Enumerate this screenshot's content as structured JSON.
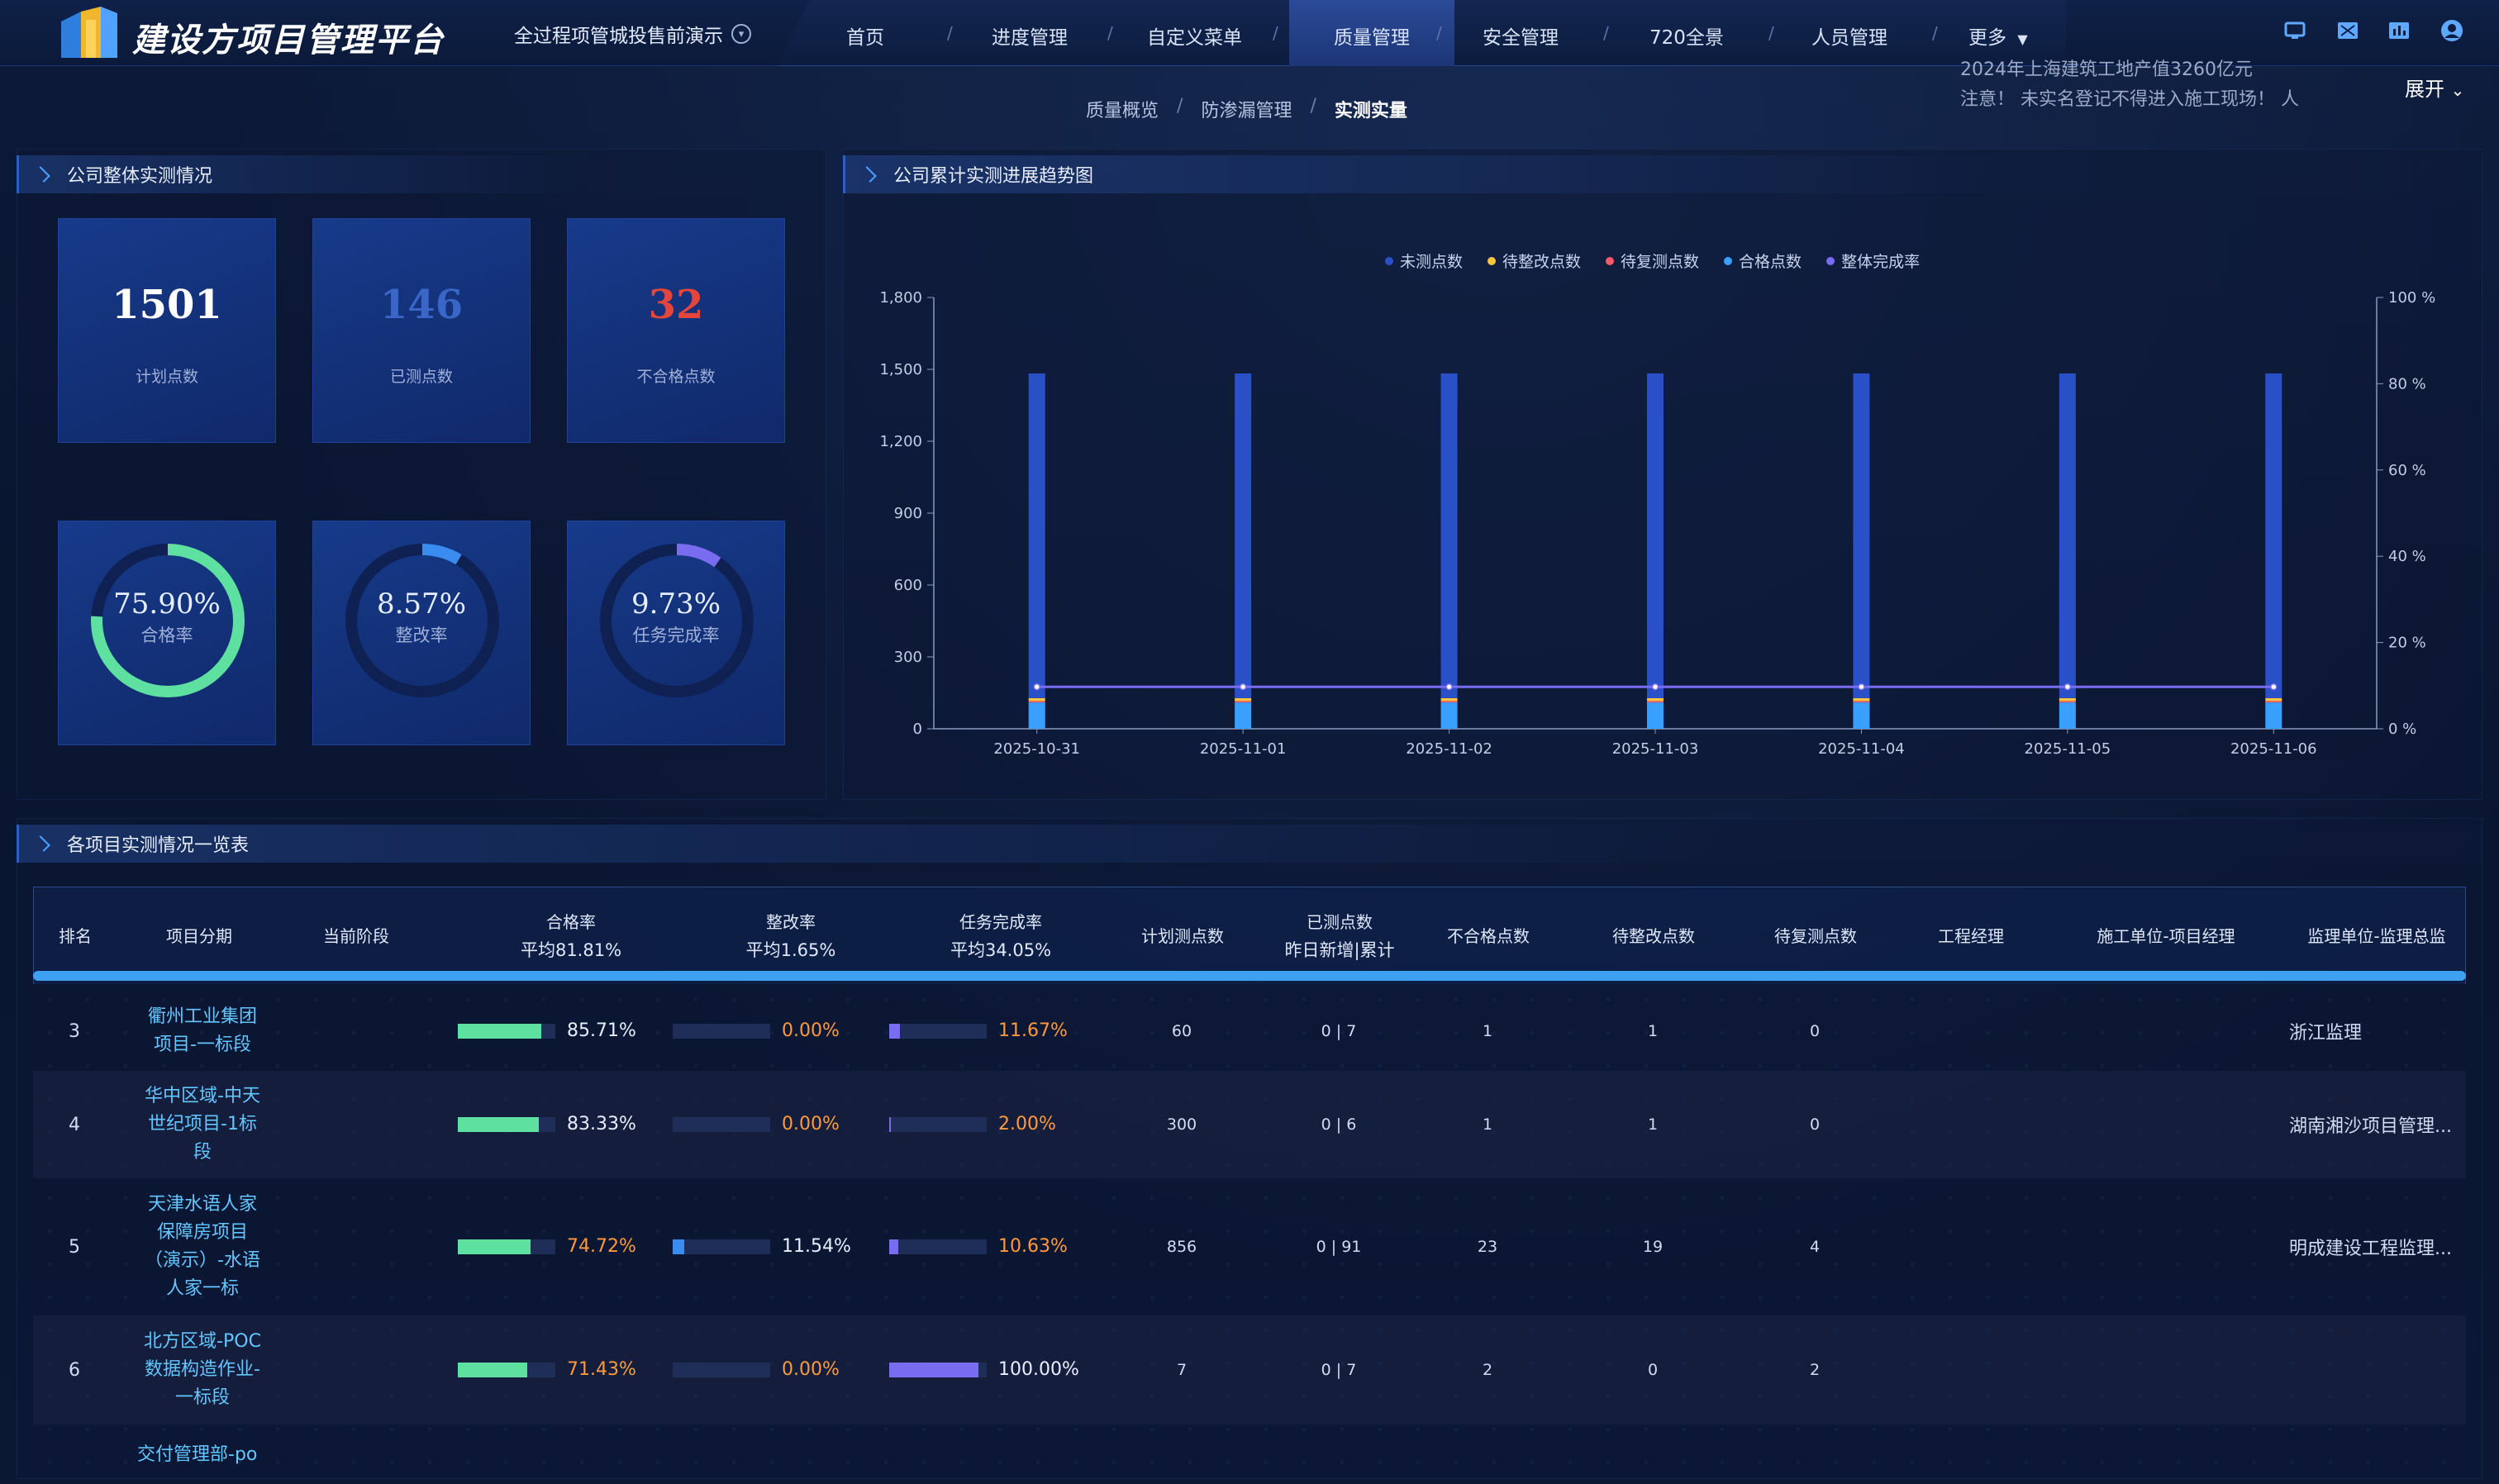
{
  "app": {
    "title": "建设方项目管理平台",
    "project": "全过程项管城投售前演示",
    "colors": {
      "accent": "#3ea0f0",
      "green": "#5ee0a0",
      "red": "#e5453a",
      "purple": "#7a6cf0",
      "orange": "#ff9a3c"
    }
  },
  "nav": {
    "items": [
      "首页",
      "进度管理",
      "自定义菜单",
      "质量管理",
      "安全管理",
      "720全景",
      "人员管理",
      "更多"
    ],
    "active": "质量管理",
    "icons": [
      "monitor-icon",
      "screen-icon",
      "chart-icon",
      "user-icon"
    ]
  },
  "subnav": {
    "items": [
      "质量概览",
      "防渗漏管理",
      "实测实量"
    ],
    "active": "实测实量"
  },
  "ticker": {
    "line1": "2024年上海建筑工地产值3260亿元",
    "line2": "注意！ 未实名登记不得进入施工现场！ 人"
  },
  "expand_label": "展开",
  "overview": {
    "title": "公司整体实测情况",
    "stats": [
      {
        "value": "1501",
        "label": "计划点数",
        "color": "#ffffff"
      },
      {
        "value": "146",
        "label": "已测点数",
        "color": "#3a66c8"
      },
      {
        "value": "32",
        "label": "不合格点数",
        "color": "#e5453a"
      }
    ],
    "rings": [
      {
        "value": "75.90%",
        "label": "合格率",
        "ratio": 0.759,
        "color": "#5ee0a0"
      },
      {
        "value": "8.57%",
        "label": "整改率",
        "ratio": 0.0857,
        "color": "#3a8cf0"
      },
      {
        "value": "9.73%",
        "label": "任务完成率",
        "ratio": 0.0973,
        "color": "#7a6cf0"
      }
    ]
  },
  "trend": {
    "title": "公司累计实测进展趋势图"
  },
  "chart_data": {
    "type": "bar",
    "categories": [
      "2025-10-31",
      "2025-11-01",
      "2025-11-02",
      "2025-11-03",
      "2025-11-04",
      "2025-11-05",
      "2025-11-06"
    ],
    "series": [
      {
        "name": "未测点数",
        "color": "#2a50c8",
        "values": [
          1355,
          1355,
          1355,
          1355,
          1355,
          1355,
          1355
        ]
      },
      {
        "name": "待整改点数",
        "color": "#f5c540",
        "values": [
          12,
          12,
          12,
          12,
          12,
          12,
          12
        ]
      },
      {
        "name": "待复测点数",
        "color": "#ff5a6a",
        "values": [
          6,
          6,
          6,
          6,
          6,
          6,
          6
        ]
      },
      {
        "name": "合格点数",
        "color": "#3aa0ff",
        "values": [
          110,
          110,
          110,
          110,
          110,
          110,
          110
        ]
      },
      {
        "name": "整体完成率",
        "color": "#7a6cf0",
        "values": [
          9.73,
          9.73,
          9.73,
          9.73,
          9.73,
          9.73,
          9.73
        ],
        "axis": "right"
      }
    ],
    "ylim": [
      0,
      1800
    ],
    "yticks": [
      "0",
      "300",
      "600",
      "900",
      "1,200",
      "1,500",
      "1,800"
    ],
    "y2lim": [
      0,
      100
    ],
    "y2ticks": [
      "0 %",
      "20 %",
      "40 %",
      "60 %",
      "80 %",
      "100 %"
    ],
    "legend_position": "top-center",
    "grid": false
  },
  "table": {
    "title": "各项目实测情况一览表",
    "headers": {
      "rank": "排名",
      "project": "项目分期",
      "stage": "当前阶段",
      "pass_rate": "合格率",
      "pass_rate_avg": "平均81.81%",
      "fix_rate": "整改率",
      "fix_rate_avg": "平均1.65%",
      "task_rate": "任务完成率",
      "task_rate_avg": "平均34.05%",
      "planned": "计划测点数",
      "measured": "已测点数",
      "measured_sub": "昨日新增|累计",
      "failed": "不合格点数",
      "to_fix": "待整改点数",
      "to_recheck": "待复测点数",
      "engineer": "工程经理",
      "contractor": "施工单位-项目经理",
      "supervisor": "监理单位-监理总监"
    },
    "rows": [
      {
        "rank": "3",
        "project": [
          "衢州工业集团",
          "项目-一标段"
        ],
        "pass": "85.71%",
        "pass_ratio": 0.8571,
        "fix": "0.00%",
        "fix_ratio": 0,
        "task": "11.67%",
        "task_ratio": 0.1167,
        "planned": "60",
        "measured": "0 | 7",
        "failed": "1",
        "to_fix": "1",
        "to_recheck": "0",
        "supervisor": "浙江监理"
      },
      {
        "rank": "4",
        "project": [
          "华中区域-中天",
          "世纪项目-1标",
          "段"
        ],
        "pass": "83.33%",
        "pass_ratio": 0.8333,
        "fix": "0.00%",
        "fix_ratio": 0,
        "task": "2.00%",
        "task_ratio": 0.02,
        "planned": "300",
        "measured": "0 | 6",
        "failed": "1",
        "to_fix": "1",
        "to_recheck": "0",
        "supervisor": "湖南湘沙项目管理..."
      },
      {
        "rank": "5",
        "project": [
          "天津水语人家",
          "保障房项目",
          "（演示）-水语",
          "人家一标"
        ],
        "pass": "74.72%",
        "pass_ratio": 0.7472,
        "fix": "11.54%",
        "fix_ratio": 0.1154,
        "task": "10.63%",
        "task_ratio": 0.1063,
        "planned": "856",
        "measured": "0 | 91",
        "failed": "23",
        "to_fix": "19",
        "to_recheck": "4",
        "supervisor": "明成建设工程监理..."
      },
      {
        "rank": "6",
        "project": [
          "北方区域-POC",
          "数据构造作业-",
          "一标段"
        ],
        "pass": "71.43%",
        "pass_ratio": 0.7143,
        "fix": "0.00%",
        "fix_ratio": 0,
        "task": "100.00%",
        "task_ratio": 1.0,
        "planned": "7",
        "measured": "0 | 7",
        "failed": "2",
        "to_fix": "0",
        "to_recheck": "2",
        "supervisor": ""
      }
    ],
    "partial_row": "交付管理部-po"
  }
}
